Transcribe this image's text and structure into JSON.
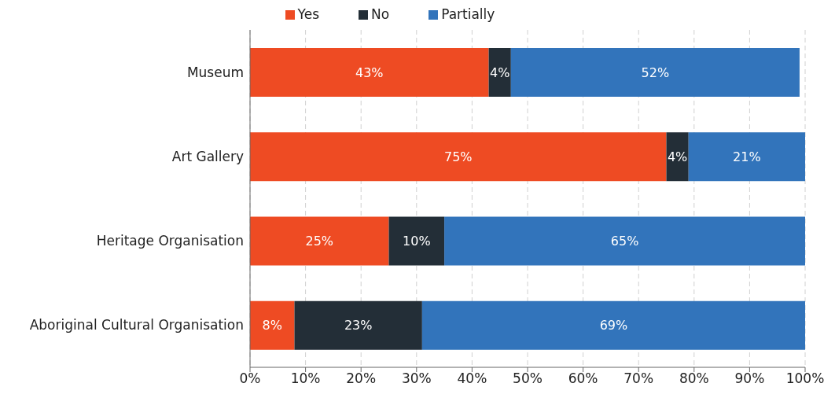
{
  "chart_data": {
    "type": "bar",
    "orientation": "horizontal",
    "stacked": true,
    "categories": [
      "Museum",
      "Art Gallery",
      "Heritage Organisation",
      "Aboriginal Cultural Organisation"
    ],
    "series": [
      {
        "name": "Yes",
        "color": "#ee4b23",
        "values": [
          43,
          75,
          25,
          8
        ],
        "value_labels": [
          "43%",
          "75%",
          "25%",
          "8%"
        ]
      },
      {
        "name": "No",
        "color": "#232e37",
        "values": [
          4,
          4,
          10,
          23
        ],
        "value_labels": [
          "4%",
          "4%",
          "10%",
          "23%"
        ]
      },
      {
        "name": "Partially",
        "color": "#3274bb",
        "values": [
          52,
          21,
          65,
          69
        ],
        "value_labels": [
          "52%",
          "21%",
          "65%",
          "69%"
        ]
      }
    ],
    "xlim": [
      0,
      100
    ],
    "xticks": [
      {
        "value": 0,
        "label": "0%"
      },
      {
        "value": 10,
        "label": "10%"
      },
      {
        "value": 20,
        "label": "20%"
      },
      {
        "value": 30,
        "label": "30%"
      },
      {
        "value": 40,
        "label": "40%"
      },
      {
        "value": 50,
        "label": "50%"
      },
      {
        "value": 60,
        "label": "60%"
      },
      {
        "value": 70,
        "label": "70%"
      },
      {
        "value": 80,
        "label": "80%"
      },
      {
        "value": 90,
        "label": "90%"
      },
      {
        "value": 100,
        "label": "100%"
      }
    ],
    "grid": "x",
    "legend": "top"
  }
}
